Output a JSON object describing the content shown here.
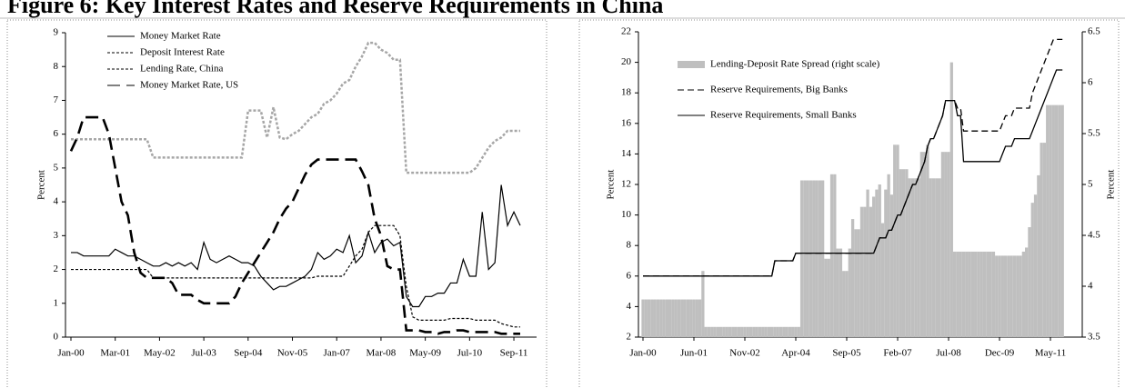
{
  "title": "Figure 6: Key Interest Rates and Reserve Requirements in China",
  "chart_data": [
    {
      "type": "line",
      "ylabel": "Percent",
      "categories": [
        "Jan-00",
        null,
        null,
        null,
        null,
        null,
        null,
        "Mar-01",
        null,
        null,
        null,
        null,
        null,
        null,
        "May-02",
        null,
        null,
        null,
        null,
        null,
        null,
        "Jul-03",
        null,
        null,
        null,
        null,
        null,
        null,
        "Sep-04",
        null,
        null,
        null,
        null,
        null,
        null,
        "Nov-05",
        null,
        null,
        null,
        null,
        null,
        null,
        "Jan-07",
        null,
        null,
        null,
        null,
        null,
        null,
        "Mar-08",
        null,
        null,
        null,
        null,
        null,
        null,
        "May-09",
        null,
        null,
        null,
        null,
        null,
        null,
        "Jul-10",
        null,
        null,
        null,
        null,
        null,
        null,
        "Sep-11",
        null
      ],
      "ylim": [
        0,
        9
      ],
      "yticks": [
        0,
        1,
        2,
        3,
        4,
        5,
        6,
        7,
        8,
        9
      ],
      "legend": "upper left",
      "series": [
        {
          "name": "Money Market Rate",
          "color": "#000000",
          "dash": "solid",
          "values": [
            2.5,
            2.5,
            2.4,
            2.4,
            2.4,
            2.4,
            2.4,
            2.6,
            2.5,
            2.4,
            2.4,
            2.3,
            2.2,
            2.1,
            2.1,
            2.2,
            2.1,
            2.2,
            2.1,
            2.2,
            2.0,
            2.8,
            2.3,
            2.2,
            2.3,
            2.4,
            2.3,
            2.2,
            2.2,
            2.1,
            1.8,
            1.6,
            1.4,
            1.5,
            1.5,
            1.6,
            1.7,
            1.8,
            2.0,
            2.5,
            2.3,
            2.4,
            2.6,
            2.5,
            3.0,
            2.2,
            2.4,
            3.1,
            2.5,
            2.8,
            2.9,
            2.7,
            2.8,
            1.2,
            0.9,
            0.9,
            1.2,
            1.2,
            1.3,
            1.3,
            1.6,
            1.6,
            2.3,
            1.8,
            1.8,
            3.7,
            2.0,
            2.2,
            4.5,
            3.3,
            3.7,
            3.3
          ]
        },
        {
          "name": "Deposit Interest Rate",
          "color": "#000000",
          "dash": "dotted",
          "values": [
            2,
            2,
            2,
            2,
            2,
            2,
            2,
            2,
            2,
            2,
            2,
            2,
            2,
            1.75,
            1.75,
            1.75,
            1.75,
            1.75,
            1.75,
            1.75,
            1.75,
            1.75,
            1.75,
            1.75,
            1.75,
            1.75,
            1.75,
            1.75,
            1.75,
            1.75,
            1.75,
            1.75,
            1.75,
            1.75,
            1.75,
            1.75,
            1.75,
            1.75,
            1.75,
            1.8,
            1.8,
            1.8,
            1.8,
            1.8,
            2.1,
            2.4,
            2.6,
            3.1,
            3.3,
            3.3,
            3.3,
            3.3,
            3.0,
            1.5,
            0.6,
            0.5,
            0.5,
            0.5,
            0.5,
            0.5,
            0.55,
            0.55,
            0.55,
            0.55,
            0.5,
            0.5,
            0.5,
            0.5,
            0.4,
            0.35,
            0.3,
            0.3
          ]
        },
        {
          "name": "Lending Rate, China",
          "color": "#a6a6a6",
          "dash": "dotted",
          "values": [
            5.85,
            5.85,
            5.85,
            5.85,
            5.85,
            5.85,
            5.85,
            5.85,
            5.85,
            5.85,
            5.85,
            5.85,
            5.85,
            5.31,
            5.31,
            5.31,
            5.31,
            5.31,
            5.31,
            5.31,
            5.31,
            5.31,
            5.31,
            5.31,
            5.31,
            5.31,
            5.31,
            5.31,
            6.7,
            6.7,
            6.7,
            5.9,
            6.8,
            5.9,
            5.85,
            6.0,
            6.1,
            6.3,
            6.5,
            6.6,
            6.9,
            7.0,
            7.2,
            7.5,
            7.6,
            8.0,
            8.3,
            8.7,
            8.7,
            8.5,
            8.4,
            8.2,
            8.2,
            4.86,
            4.86,
            4.86,
            4.86,
            4.86,
            4.86,
            4.86,
            4.86,
            4.86,
            4.86,
            4.86,
            5.0,
            5.3,
            5.6,
            5.8,
            5.9,
            6.1,
            6.1,
            6.1
          ]
        },
        {
          "name": "Money Market Rate, US",
          "color": "#000000",
          "dash": "long-dash",
          "values": [
            5.5,
            5.9,
            6.5,
            6.5,
            6.5,
            6.5,
            6.0,
            5.0,
            4.0,
            3.6,
            2.5,
            1.9,
            1.75,
            1.75,
            1.75,
            1.75,
            1.6,
            1.25,
            1.25,
            1.25,
            1.1,
            1.0,
            1.0,
            1.0,
            1.0,
            1.0,
            1.2,
            1.6,
            1.9,
            2.2,
            2.5,
            2.8,
            3.1,
            3.5,
            3.8,
            4.0,
            4.4,
            4.8,
            5.1,
            5.25,
            5.25,
            5.25,
            5.25,
            5.25,
            5.25,
            5.25,
            4.9,
            4.5,
            3.5,
            3.0,
            2.1,
            2.0,
            2.0,
            0.2,
            0.2,
            0.2,
            0.15,
            0.15,
            0.1,
            0.15,
            0.15,
            0.2,
            0.2,
            0.15,
            0.15,
            0.15,
            0.15,
            0.15,
            0.1,
            0.1,
            0.1,
            0.1
          ]
        }
      ]
    },
    {
      "type": "combo",
      "ylabel": "Percent",
      "y2label": "Percent",
      "categories": [
        "Jan-00",
        null,
        null,
        null,
        null,
        null,
        null,
        null,
        null,
        null,
        null,
        null,
        null,
        null,
        null,
        null,
        null,
        "Jun-01",
        null,
        null,
        null,
        null,
        null,
        null,
        null,
        null,
        null,
        null,
        null,
        null,
        null,
        null,
        null,
        null,
        "Nov-02",
        null,
        null,
        null,
        null,
        null,
        null,
        null,
        null,
        null,
        null,
        null,
        null,
        null,
        null,
        null,
        null,
        "Apr-04",
        null,
        null,
        null,
        null,
        null,
        null,
        null,
        null,
        null,
        null,
        null,
        null,
        null,
        null,
        null,
        null,
        "Sep-05",
        null,
        null,
        null,
        null,
        null,
        null,
        null,
        null,
        null,
        null,
        null,
        null,
        null,
        null,
        null,
        null,
        "Feb-07",
        null,
        null,
        null,
        null,
        null,
        null,
        null,
        null,
        null,
        null,
        null,
        null,
        null,
        null,
        null,
        null,
        "Jul-08",
        null,
        null,
        null,
        null,
        null,
        null,
        null,
        null,
        null,
        null,
        null,
        null,
        null,
        null,
        null,
        null,
        "Dec-09",
        null,
        null,
        null,
        null,
        null,
        null,
        null,
        null,
        null,
        null,
        null,
        null,
        null,
        null,
        null,
        null,
        "May-11",
        null,
        null,
        null,
        null
      ],
      "ylim": [
        2,
        22
      ],
      "yticks": [
        2,
        4,
        6,
        8,
        10,
        12,
        14,
        16,
        18,
        20,
        22
      ],
      "y2lim": [
        3.5,
        6.5
      ],
      "y2ticks": [
        3.5,
        4,
        4.5,
        5,
        5.5,
        6,
        6.5
      ],
      "legend": "upper left",
      "series": [
        {
          "name": "Lending-Deposit Rate Spread (right scale)",
          "type": "bar",
          "axis": "y2",
          "color": "#bfbfbf",
          "values": [
            3.87,
            3.87,
            3.87,
            3.87,
            3.87,
            3.87,
            3.87,
            3.87,
            3.87,
            3.87,
            3.87,
            3.87,
            3.87,
            3.87,
            3.87,
            3.87,
            3.87,
            3.87,
            3.87,
            3.87,
            4.15,
            3.6,
            3.6,
            3.6,
            3.6,
            3.6,
            3.6,
            3.6,
            3.6,
            3.6,
            3.6,
            3.6,
            3.6,
            3.6,
            3.6,
            3.6,
            3.6,
            3.6,
            3.6,
            3.6,
            3.6,
            3.6,
            3.6,
            3.6,
            3.6,
            3.6,
            3.6,
            3.6,
            3.6,
            3.6,
            3.6,
            3.6,
            3.6,
            5.04,
            5.04,
            5.04,
            5.04,
            5.04,
            5.04,
            5.04,
            5.04,
            4.27,
            4.27,
            5.1,
            5.1,
            4.37,
            4.37,
            4.15,
            4.15,
            4.37,
            4.66,
            4.56,
            4.56,
            4.78,
            4.78,
            4.95,
            4.78,
            4.88,
            4.95,
            5.0,
            4.62,
            4.95,
            5.1,
            4.9,
            5.39,
            5.39,
            5.15,
            5.15,
            5.15,
            5.06,
            5.06,
            5.06,
            5.06,
            5.32,
            5.32,
            5.39,
            5.06,
            5.06,
            5.06,
            5.06,
            5.32,
            5.32,
            5.32,
            6.2,
            4.34,
            4.34,
            4.34,
            4.34,
            4.34,
            4.34,
            4.34,
            4.34,
            4.34,
            4.34,
            4.34,
            4.34,
            4.34,
            4.34,
            4.3,
            4.3,
            4.3,
            4.3,
            4.3,
            4.3,
            4.3,
            4.3,
            4.3,
            4.34,
            4.38,
            4.58,
            4.82,
            4.9,
            5.09,
            5.41,
            5.41,
            5.78,
            5.78,
            5.78,
            5.78,
            5.78,
            5.78
          ]
        },
        {
          "name": "Reserve Requirements, Big Banks",
          "type": "line",
          "color": "#000000",
          "dash": "dashed",
          "values": [
            6,
            6,
            6,
            6,
            6,
            6,
            6,
            6,
            6,
            6,
            6,
            6,
            6,
            6,
            6,
            6,
            6,
            6,
            6,
            6,
            6,
            6,
            6,
            6,
            6,
            6,
            6,
            6,
            6,
            6,
            6,
            6,
            6,
            6,
            6,
            6,
            6,
            6,
            6,
            6,
            6,
            6,
            6,
            6,
            7,
            7,
            7,
            7,
            7,
            7,
            7,
            7.5,
            7.5,
            7.5,
            7.5,
            7.5,
            7.5,
            7.5,
            7.5,
            7.5,
            7.5,
            7.5,
            7.5,
            7.5,
            7.5,
            7.5,
            7.5,
            7.5,
            7.5,
            7.5,
            7.5,
            7.5,
            7.5,
            7.5,
            7.5,
            7.5,
            7.5,
            7.5,
            8,
            8.5,
            8.5,
            8.5,
            9,
            9,
            9.5,
            10,
            10,
            10.5,
            11,
            11.5,
            12,
            12,
            12.5,
            13,
            13.5,
            14.5,
            15,
            15,
            15.5,
            16,
            16.5,
            17.5,
            17.5,
            17.5,
            17.5,
            17,
            17,
            15.5,
            15.5,
            15.5,
            15.5,
            15.5,
            15.5,
            15.5,
            15.5,
            15.5,
            15.5,
            15.5,
            15.5,
            15.5,
            16,
            16.5,
            16.5,
            16.5,
            17,
            17,
            17,
            17,
            17,
            17,
            18,
            18.5,
            19,
            19.5,
            20,
            20.5,
            21,
            21.5,
            21.5,
            21.5,
            21.5
          ]
        },
        {
          "name": "Reserve Requirements, Small Banks",
          "type": "line",
          "color": "#000000",
          "dash": "solid",
          "values": [
            6,
            6,
            6,
            6,
            6,
            6,
            6,
            6,
            6,
            6,
            6,
            6,
            6,
            6,
            6,
            6,
            6,
            6,
            6,
            6,
            6,
            6,
            6,
            6,
            6,
            6,
            6,
            6,
            6,
            6,
            6,
            6,
            6,
            6,
            6,
            6,
            6,
            6,
            6,
            6,
            6,
            6,
            6,
            6,
            7,
            7,
            7,
            7,
            7,
            7,
            7,
            7.5,
            7.5,
            7.5,
            7.5,
            7.5,
            7.5,
            7.5,
            7.5,
            7.5,
            7.5,
            7.5,
            7.5,
            7.5,
            7.5,
            7.5,
            7.5,
            7.5,
            7.5,
            7.5,
            7.5,
            7.5,
            7.5,
            7.5,
            7.5,
            7.5,
            7.5,
            7.5,
            8,
            8.5,
            8.5,
            8.5,
            9,
            9,
            9.5,
            10,
            10,
            10.5,
            11,
            11.5,
            12,
            12,
            12.5,
            13,
            13.5,
            14.5,
            15,
            15,
            15.5,
            16,
            16.5,
            17.5,
            17.5,
            17.5,
            17.5,
            16.5,
            16.5,
            13.5,
            13.5,
            13.5,
            13.5,
            13.5,
            13.5,
            13.5,
            13.5,
            13.5,
            13.5,
            13.5,
            13.5,
            13.5,
            14,
            14.5,
            14.5,
            14.5,
            15,
            15,
            15,
            15,
            15,
            15,
            15.5,
            16,
            16.5,
            17,
            17.5,
            18,
            18.5,
            19,
            19.5,
            19.5,
            19.5
          ]
        }
      ]
    }
  ]
}
